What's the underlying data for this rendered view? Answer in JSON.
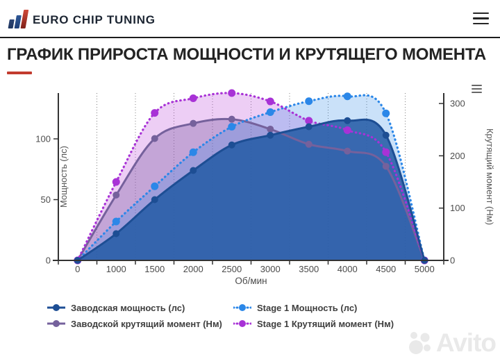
{
  "header": {
    "logo_text": "EURO CHIP TUNING",
    "menu_icon": "hamburger-icon"
  },
  "title": {
    "text": "ГРАФИК ПРИРОСТА МОЩНОСТИ И КРУТЯЩЕГО МОМЕНТА",
    "accent_color": "#c23b2e"
  },
  "chart_data": {
    "type": "area",
    "x_title": "Об/мин",
    "categories": [
      0,
      1000,
      1500,
      2000,
      2500,
      3000,
      3500,
      4000,
      4500,
      5000
    ],
    "grid": "vertical-dotted",
    "legend_position": "bottom",
    "export_icon": "context-menu-icon",
    "y_left": {
      "title": "Мощность (лс)",
      "ticks": [
        0,
        50,
        100
      ],
      "max": 137.7
    },
    "y_right": {
      "title": "Крутящий момент (Нм)",
      "ticks": [
        0,
        100,
        200,
        300
      ],
      "max": 320
    },
    "series": [
      {
        "name": "Заводская мощность (лс)",
        "axis": "left",
        "style": "solid",
        "color": "#1d4e94",
        "fill": "rgba(38,92,166,0.88)",
        "values": [
          0,
          22,
          50,
          74,
          95,
          103,
          110,
          115,
          103,
          0
        ]
      },
      {
        "name": "Stage 1 Мощность (лс)",
        "axis": "left",
        "style": "dotted",
        "color": "#2b87e8",
        "fill": "rgba(43,135,232,0.25)",
        "values": [
          0,
          32,
          61,
          89,
          110,
          122,
          131,
          135,
          121,
          0
        ]
      },
      {
        "name": "Заводской крутящий момент (Нм)",
        "axis": "right",
        "style": "solid",
        "color": "#75619c",
        "fill": "rgba(120,90,160,0.35)",
        "values": [
          0,
          125,
          233,
          262,
          270,
          251,
          222,
          209,
          180,
          0
        ]
      },
      {
        "name": "Stage 1 Крутящий момент (Нм)",
        "axis": "right",
        "style": "dotted",
        "color": "#a832d6",
        "fill": "rgba(190,80,220,0.28)",
        "values": [
          0,
          150,
          282,
          310,
          320,
          304,
          267,
          249,
          207,
          0
        ]
      }
    ]
  },
  "watermark": {
    "text": "Avito",
    "icon": "avito-logo-icon"
  }
}
